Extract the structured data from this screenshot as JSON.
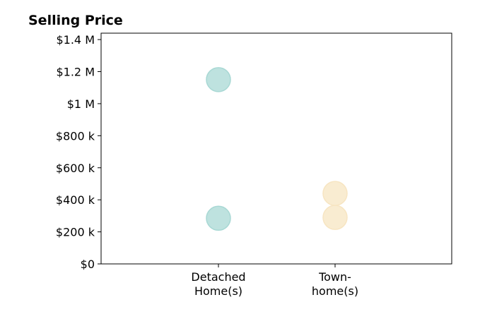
{
  "chart_data": {
    "type": "scatter",
    "title": "Selling Price",
    "xlabel": "",
    "ylabel": "",
    "categories": [
      [
        "Detached",
        "Home(s)"
      ],
      [
        "Town-",
        "home(s)"
      ]
    ],
    "ylim": [
      0,
      1440000
    ],
    "yticks": [
      0,
      200000,
      400000,
      600000,
      800000,
      1000000,
      1200000,
      1400000
    ],
    "ytick_labels": [
      "$0",
      "$200 k",
      "$400 k",
      "$600 k",
      "$800 k",
      "$1 M",
      "$1.2 M",
      "$1.4 M"
    ],
    "grid": false,
    "legend": "none",
    "series": [
      {
        "category": 0,
        "color": "#a8d8d4",
        "values": [
          1150000,
          285000
        ]
      },
      {
        "category": 1,
        "color": "#f7e5c2",
        "values": [
          440000,
          290000
        ]
      }
    ]
  }
}
